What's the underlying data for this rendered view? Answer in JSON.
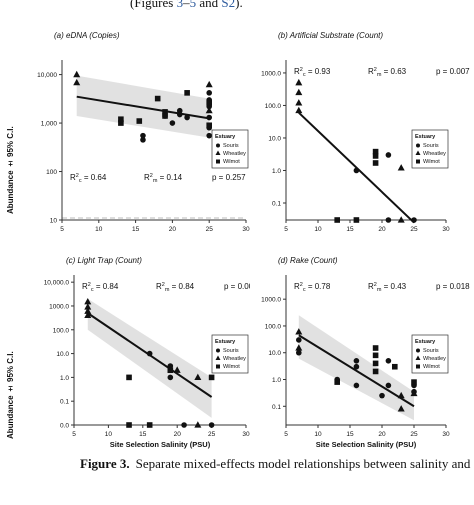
{
  "caption_top": {
    "prefix": "(Figures ",
    "ref1": "3",
    "sep": "–",
    "ref2": "5",
    "mid": " and ",
    "ref3": "S2",
    "suffix": ")."
  },
  "caption_bottom": {
    "label": "Figure 3.",
    "text": "Separate mixed-effects model relationships between salinity and sa"
  },
  "y_axis_label": "Abundance ± 95% C.I.",
  "x_axis_label": "Site Selection Salinity (PSU)",
  "legend": {
    "title": "Estuary",
    "entries": [
      {
        "name": "Souris",
        "marker": "circle"
      },
      {
        "name": "Wheatley",
        "marker": "triangle"
      },
      {
        "name": "Wilmot",
        "marker": "square"
      }
    ]
  },
  "colors": {
    "points": "#111111",
    "line": "#111111",
    "band": "#dcdcdc",
    "axis": "#333333",
    "dashed": "#bbbbbb"
  },
  "chart_data": [
    {
      "id": "a",
      "type": "scatter",
      "title": "(a) eDNA (Copies)",
      "y_scale": "log",
      "ylim": [
        10,
        20000
      ],
      "xlim": [
        5,
        30
      ],
      "x_ticks": [
        5,
        10,
        15,
        20,
        25,
        30
      ],
      "y_ticks": [
        {
          "v": 10,
          "label": "10"
        },
        {
          "v": 100,
          "label": "100"
        },
        {
          "v": 1000,
          "label": "1,000"
        },
        {
          "v": 10000,
          "label": "10,000"
        }
      ],
      "show_x_title": false,
      "dashed_h": 11,
      "stats": {
        "rc": "0.64",
        "rm": "0.14",
        "p": "0.257",
        "pos": "bottom"
      },
      "fit": {
        "x": [
          7,
          25
        ],
        "y": [
          3500,
          1250
        ]
      },
      "band": {
        "lower": [
          1400,
          500
        ],
        "upper": [
          9500,
          3200
        ]
      },
      "series": [
        {
          "name": "Souris",
          "marker": "circle",
          "points": [
            [
              16,
              450
            ],
            [
              16,
              550
            ],
            [
              19,
              1400
            ],
            [
              20,
              1000
            ],
            [
              21,
              1800
            ],
            [
              21,
              1500
            ],
            [
              22,
              1300
            ],
            [
              25,
              4200
            ],
            [
              25,
              3000
            ],
            [
              25,
              2200
            ],
            [
              25,
              1300
            ],
            [
              25,
              800
            ],
            [
              25,
              550
            ]
          ]
        },
        {
          "name": "Wheatley",
          "marker": "triangle",
          "points": [
            [
              7,
              10000
            ],
            [
              7,
              6800
            ],
            [
              25,
              6200
            ],
            [
              25,
              1800
            ]
          ]
        },
        {
          "name": "Wilmot",
          "marker": "square",
          "points": [
            [
              13,
              1000
            ],
            [
              13,
              1200
            ],
            [
              15.5,
              1100
            ],
            [
              18,
              3200
            ],
            [
              19,
              1700
            ],
            [
              19,
              1400
            ],
            [
              22,
              4200
            ],
            [
              25,
              2600
            ],
            [
              25,
              900
            ]
          ]
        }
      ]
    },
    {
      "id": "b",
      "type": "scatter",
      "title": "(b) Artificial Substrate (Count)",
      "y_scale": "log",
      "ylim": [
        0.03,
        2500
      ],
      "xlim": [
        5,
        30
      ],
      "x_ticks": [
        5,
        10,
        15,
        20,
        25,
        30
      ],
      "y_ticks": [
        {
          "v": 0.1,
          "label": "0.1"
        },
        {
          "v": 1,
          "label": "1.0"
        },
        {
          "v": 10,
          "label": "10.0"
        },
        {
          "v": 100,
          "label": "100.0"
        },
        {
          "v": 1000,
          "label": "1000.0"
        }
      ],
      "show_x_title": false,
      "stats": {
        "rc": "0.93",
        "rm": "0.63",
        "p": "0.007",
        "pos": "top"
      },
      "fit": {
        "x": [
          7,
          25
        ],
        "y": [
          60,
          0.025
        ]
      },
      "band": null,
      "series": [
        {
          "name": "Souris",
          "marker": "circle",
          "points": [
            [
              16,
              1
            ],
            [
              21,
              3
            ],
            [
              21,
              0.03
            ],
            [
              25,
              0.03
            ]
          ]
        },
        {
          "name": "Wheatley",
          "marker": "triangle",
          "points": [
            [
              7,
              500
            ],
            [
              7,
              250
            ],
            [
              7,
              120
            ],
            [
              7,
              70
            ],
            [
              23,
              1.2
            ],
            [
              23,
              0.03
            ]
          ]
        },
        {
          "name": "Wilmot",
          "marker": "square",
          "points": [
            [
              13,
              0.03
            ],
            [
              16,
              0.03
            ],
            [
              19,
              3.8
            ],
            [
              19,
              2.8
            ],
            [
              19,
              1.7
            ]
          ]
        }
      ]
    },
    {
      "id": "c",
      "type": "scatter",
      "title": "(c) Light Trap (Count)",
      "y_scale": "log",
      "ylim": [
        0.01,
        20000
      ],
      "xlim": [
        5,
        30
      ],
      "x_ticks": [
        5,
        10,
        15,
        20,
        25,
        30
      ],
      "y_ticks": [
        {
          "v": 0.01,
          "label": "0.0"
        },
        {
          "v": 0.1,
          "label": "0.1"
        },
        {
          "v": 1,
          "label": "1.0"
        },
        {
          "v": 10,
          "label": "10.0"
        },
        {
          "v": 100,
          "label": "100.0"
        },
        {
          "v": 1000,
          "label": "1000.0"
        },
        {
          "v": 10000,
          "label": "10,000.0"
        }
      ],
      "show_x_title": true,
      "stats": {
        "rc": "0.84",
        "rm": "0.84",
        "p": "0.001",
        "pos": "top"
      },
      "fit": {
        "x": [
          7,
          25
        ],
        "y": [
          500,
          0.15
        ]
      },
      "band": {
        "lower": [
          100,
          0.02
        ],
        "upper": [
          2000,
          1
        ]
      },
      "series": [
        {
          "name": "Souris",
          "marker": "circle",
          "points": [
            [
              16,
              10
            ],
            [
              19,
              3
            ],
            [
              19,
              1
            ],
            [
              21,
              0.01
            ],
            [
              25,
              0.01
            ]
          ]
        },
        {
          "name": "Wheatley",
          "marker": "triangle",
          "points": [
            [
              7,
              1500
            ],
            [
              7,
              900
            ],
            [
              7,
              600
            ],
            [
              7,
              400
            ],
            [
              20,
              2
            ],
            [
              23,
              1
            ],
            [
              23,
              0.01
            ]
          ]
        },
        {
          "name": "Wilmot",
          "marker": "square",
          "points": [
            [
              13,
              1
            ],
            [
              13,
              0.01
            ],
            [
              16,
              0.01
            ],
            [
              19,
              2
            ],
            [
              25,
              1
            ]
          ]
        }
      ]
    },
    {
      "id": "d",
      "type": "scatter",
      "title": "(d) Rake (Count)",
      "y_scale": "log",
      "ylim": [
        0.02,
        8000
      ],
      "xlim": [
        5,
        30
      ],
      "x_ticks": [
        5,
        10,
        15,
        20,
        25,
        30
      ],
      "y_ticks": [
        {
          "v": 0.1,
          "label": "0.1"
        },
        {
          "v": 1,
          "label": "1.0"
        },
        {
          "v": 10,
          "label": "10.0"
        },
        {
          "v": 100,
          "label": "100.0"
        },
        {
          "v": 1000,
          "label": "1000.0"
        }
      ],
      "show_x_title": true,
      "stats": {
        "rc": "0.78",
        "rm": "0.43",
        "p": "0.018",
        "pos": "top"
      },
      "fit": {
        "x": [
          7,
          25
        ],
        "y": [
          45,
          0.1
        ]
      },
      "band": {
        "lower": [
          6,
          0.03
        ],
        "upper": [
          250,
          0.35
        ]
      },
      "series": [
        {
          "name": "Souris",
          "marker": "circle",
          "points": [
            [
              7,
              30
            ],
            [
              7,
              10
            ],
            [
              13,
              1
            ],
            [
              16,
              5
            ],
            [
              16,
              3
            ],
            [
              16,
              0.6
            ],
            [
              20,
              0.25
            ],
            [
              21,
              5
            ],
            [
              21,
              0.6
            ],
            [
              25,
              0.6
            ],
            [
              25,
              0.35
            ]
          ]
        },
        {
          "name": "Wheatley",
          "marker": "triangle",
          "points": [
            [
              7,
              60
            ],
            [
              7,
              15
            ],
            [
              23,
              0.25
            ],
            [
              23,
              0.08
            ],
            [
              25,
              0.3
            ]
          ]
        },
        {
          "name": "Wilmot",
          "marker": "square",
          "points": [
            [
              13,
              0.8
            ],
            [
              19,
              15
            ],
            [
              19,
              8
            ],
            [
              19,
              4
            ],
            [
              19,
              2
            ],
            [
              22,
              3
            ],
            [
              25,
              0.8
            ]
          ]
        }
      ]
    }
  ]
}
